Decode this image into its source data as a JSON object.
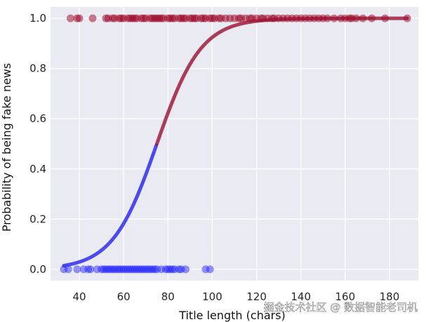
{
  "chart_data": {
    "type": "scatter",
    "xlabel": "Title length (chars)",
    "ylabel": "Probability of being fake news",
    "xlim": [
      27,
      193
    ],
    "ylim": [
      -0.045,
      1.045
    ],
    "x_ticks": [
      40,
      60,
      80,
      100,
      120,
      140,
      160,
      180
    ],
    "y_ticks": [
      0.0,
      0.2,
      0.4,
      0.6,
      0.8,
      1.0
    ],
    "x_tick_labels": [
      "40",
      "60",
      "80",
      "100",
      "120",
      "140",
      "160",
      "180"
    ],
    "y_tick_labels": [
      "0.0",
      "0.2",
      "0.4",
      "0.6",
      "0.8",
      "1.0"
    ],
    "grid": true,
    "background_color": "#eaeaf2",
    "colors": {
      "real": "#1a1aff",
      "fake": "#990022",
      "curve_low": "#2222ee",
      "curve_high": "#9b0f2e"
    },
    "logistic_curve": {
      "midpoint": 75,
      "slope": 0.1,
      "x_min": 33,
      "x_max": 188,
      "threshold": 0.5
    },
    "series": [
      {
        "y": 1,
        "x": [
          36,
          39,
          40,
          46,
          52,
          53,
          55,
          56,
          58,
          59,
          60,
          62,
          63,
          64,
          65,
          66,
          68,
          69,
          70,
          72,
          73,
          74,
          75,
          76,
          77,
          78,
          80,
          81,
          82,
          83,
          85,
          86,
          87,
          88,
          90,
          91,
          92,
          93,
          95,
          96,
          97,
          99,
          100,
          101,
          103,
          104,
          106,
          108,
          110,
          112,
          113,
          115,
          117,
          118,
          120,
          122,
          123,
          125,
          127,
          128,
          130,
          132,
          134,
          136,
          138,
          140,
          142,
          144,
          146,
          148,
          150,
          152,
          155,
          158,
          160,
          162,
          163,
          165,
          168,
          172,
          178,
          188
        ]
      },
      {
        "y": 0,
        "x": [
          33,
          35,
          39,
          42,
          44,
          45,
          48,
          50,
          51,
          52,
          53,
          54,
          55,
          56,
          57,
          58,
          59,
          60,
          61,
          62,
          63,
          64,
          65,
          66,
          67,
          68,
          69,
          70,
          71,
          72,
          73,
          74,
          75,
          77,
          79,
          80,
          81,
          82,
          83,
          85,
          86,
          88,
          97,
          99
        ]
      }
    ]
  },
  "watermark": {
    "text": "掘金技术社区 @ 数据智能老司机"
  }
}
